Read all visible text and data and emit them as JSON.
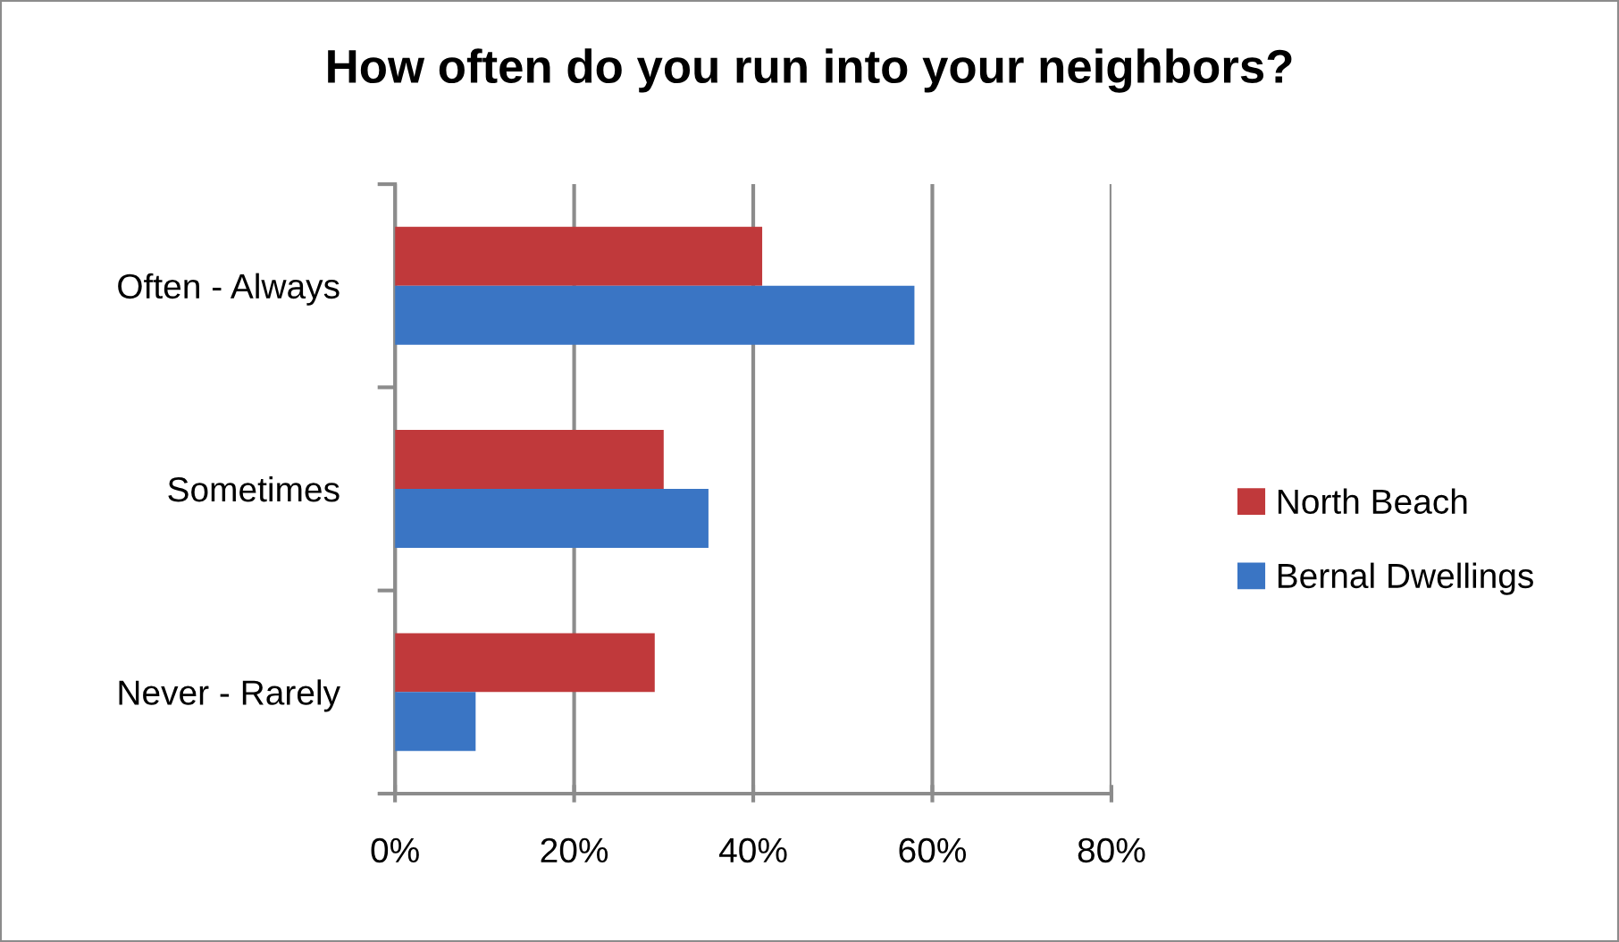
{
  "chart_data": {
    "type": "bar",
    "orientation": "horizontal",
    "title": "How often do you run into your neighbors?",
    "categories": [
      "Often - Always",
      "Sometimes",
      "Never - Rarely"
    ],
    "series": [
      {
        "name": "North Beach",
        "color": "#c0393b",
        "values": [
          41,
          30,
          29
        ]
      },
      {
        "name": "Bernal Dwellings",
        "color": "#3a75c4",
        "values": [
          58,
          35,
          9
        ]
      }
    ],
    "xlim": [
      0,
      80
    ],
    "xticks": [
      {
        "value": 0,
        "label": "0%"
      },
      {
        "value": 20,
        "label": "20%"
      },
      {
        "value": 40,
        "label": "40%"
      },
      {
        "value": 60,
        "label": "60%"
      },
      {
        "value": 80,
        "label": "80%"
      }
    ],
    "grid": "x",
    "legend": "right"
  }
}
